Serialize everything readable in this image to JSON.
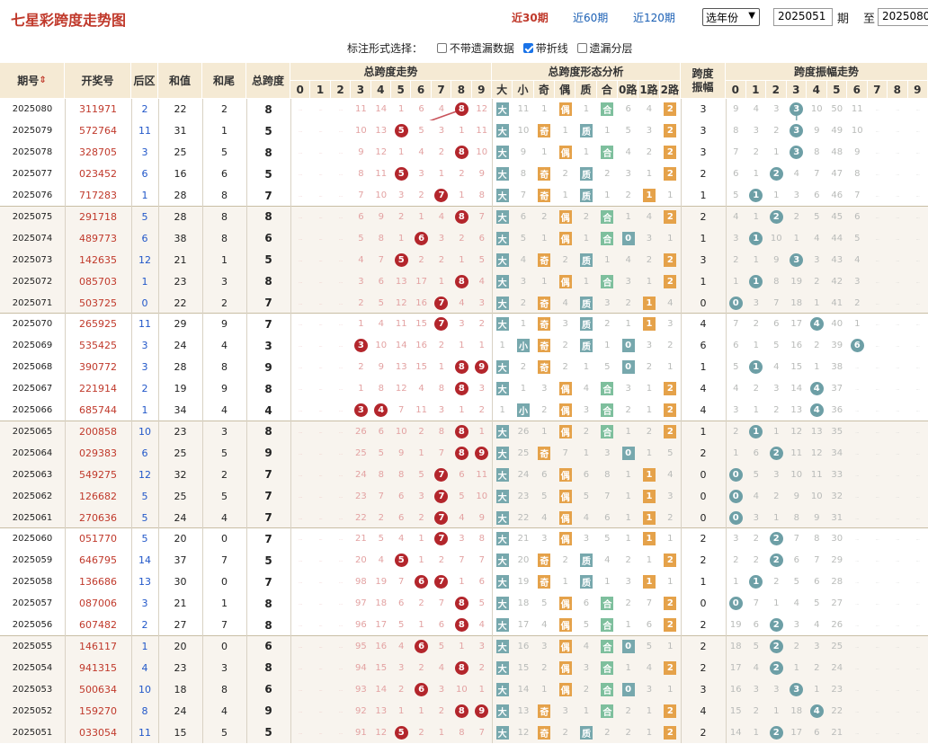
{
  "header": {
    "title": "七星彩跨度走势图",
    "links": [
      {
        "label": "近30期",
        "active": true
      },
      {
        "label": "近60期",
        "active": false
      },
      {
        "label": "近120期",
        "active": false
      }
    ],
    "year_select": "选年份",
    "from_value": "2025051",
    "period_label": "期",
    "to_label": "至",
    "to_value": "2025080"
  },
  "options": {
    "label": "标注形式选择：",
    "items": [
      {
        "label": "不带遗漏数据",
        "checked": false
      },
      {
        "label": "带折线",
        "checked": true
      },
      {
        "label": "遗漏分层",
        "checked": false
      }
    ]
  },
  "table_headers": {
    "issue": "期号",
    "draw": "开奖号",
    "back": "后区",
    "sum": "和值",
    "tail": "和尾",
    "span": "总跨度",
    "trend": "总跨度走势",
    "shape": "总跨度形态分析",
    "amp": "跨度振幅",
    "amp_trend": "跨度振幅走势",
    "digits": [
      "0",
      "1",
      "2",
      "3",
      "4",
      "5",
      "6",
      "7",
      "8",
      "9"
    ],
    "shape_cols": [
      "大",
      "小",
      "奇",
      "偶",
      "质",
      "合",
      "0路",
      "1路",
      "2路"
    ]
  },
  "colors": {
    "accent": "#c0392b",
    "link": "#1a5fb4",
    "ball_red": "#b3262c",
    "ball_teal": "#6d9fa6",
    "header_bg": "#f5ead4",
    "big": "#77a8ad",
    "odd": "#e5a24a"
  },
  "rows": [
    {
      "issue": "2025080",
      "draw": "311971",
      "back": "2",
      "sum": "22",
      "tail": "2",
      "span": "8",
      "trend": [
        "_",
        "_",
        "_",
        "11",
        "14",
        "1",
        "6",
        "4",
        "*",
        "12"
      ],
      "shape": [
        "*",
        "11",
        "1",
        "*",
        "1",
        "*",
        "6",
        "4",
        "*"
      ],
      "amp": "3",
      "amp_trend": [
        "9",
        "4",
        "3",
        "*",
        "10",
        "50",
        "11",
        "_",
        "_",
        "_"
      ]
    },
    {
      "issue": "2025079",
      "draw": "572764",
      "back": "11",
      "sum": "31",
      "tail": "1",
      "span": "5",
      "trend": [
        "_",
        "_",
        "_",
        "10",
        "13",
        "*",
        "5",
        "3",
        "1",
        "11"
      ],
      "shape": [
        "*",
        "10",
        "*",
        "1",
        "*",
        "1",
        "5",
        "3",
        "*"
      ],
      "amp": "3",
      "amp_trend": [
        "8",
        "3",
        "2",
        "*",
        "9",
        "49",
        "10",
        "_",
        "_",
        "_"
      ]
    },
    {
      "issue": "2025078",
      "draw": "328705",
      "back": "3",
      "sum": "25",
      "tail": "5",
      "span": "8",
      "trend": [
        "_",
        "_",
        "_",
        "9",
        "12",
        "1",
        "4",
        "2",
        "*",
        "10"
      ],
      "shape": [
        "*",
        "9",
        "1",
        "*",
        "1",
        "*",
        "4",
        "2",
        "*"
      ],
      "amp": "3",
      "amp_trend": [
        "7",
        "2",
        "1",
        "*",
        "8",
        "48",
        "9",
        "_",
        "_",
        "_"
      ]
    },
    {
      "issue": "2025077",
      "draw": "023452",
      "back": "6",
      "sum": "16",
      "tail": "6",
      "span": "5",
      "trend": [
        "_",
        "_",
        "_",
        "8",
        "11",
        "*",
        "3",
        "1",
        "2",
        "9"
      ],
      "shape": [
        "*",
        "8",
        "*",
        "2",
        "*",
        "2",
        "3",
        "1",
        "*"
      ],
      "amp": "2",
      "amp_trend": [
        "6",
        "1",
        "*",
        "4",
        "7",
        "47",
        "8",
        "_",
        "_",
        "_"
      ]
    },
    {
      "issue": "2025076",
      "draw": "717283",
      "back": "1",
      "sum": "28",
      "tail": "8",
      "span": "7",
      "trend": [
        "_",
        "_",
        "_",
        "7",
        "10",
        "3",
        "2",
        "*",
        "1",
        "8"
      ],
      "shape": [
        "*",
        "7",
        "*",
        "1",
        "*",
        "1",
        "2",
        "*",
        "1"
      ],
      "amp": "1",
      "amp_trend": [
        "5",
        "*",
        "1",
        "3",
        "6",
        "46",
        "7",
        "_",
        "_",
        "_"
      ]
    },
    {
      "issue": "2025075",
      "draw": "291718",
      "back": "5",
      "sum": "28",
      "tail": "8",
      "span": "8",
      "trend": [
        "_",
        "_",
        "_",
        "6",
        "9",
        "2",
        "1",
        "4",
        "*",
        "7"
      ],
      "shape": [
        "*",
        "6",
        "2",
        "*",
        "2",
        "*",
        "1",
        "4",
        "*"
      ],
      "amp": "2",
      "amp_trend": [
        "4",
        "1",
        "*",
        "2",
        "5",
        "45",
        "6",
        "_",
        "_",
        "_"
      ]
    },
    {
      "issue": "2025074",
      "draw": "489773",
      "back": "6",
      "sum": "38",
      "tail": "8",
      "span": "6",
      "trend": [
        "_",
        "_",
        "_",
        "5",
        "8",
        "1",
        "*",
        "3",
        "2",
        "6"
      ],
      "shape": [
        "*",
        "5",
        "1",
        "*",
        "1",
        "*",
        "*",
        "3",
        "1"
      ],
      "amp": "1",
      "amp_trend": [
        "3",
        "*",
        "10",
        "1",
        "4",
        "44",
        "5",
        "_",
        "_",
        "_"
      ]
    },
    {
      "issue": "2025073",
      "draw": "142635",
      "back": "12",
      "sum": "21",
      "tail": "1",
      "span": "5",
      "trend": [
        "_",
        "_",
        "_",
        "4",
        "7",
        "*",
        "2",
        "2",
        "1",
        "5"
      ],
      "shape": [
        "*",
        "4",
        "*",
        "2",
        "*",
        "1",
        "4",
        "2",
        "*"
      ],
      "amp": "3",
      "amp_trend": [
        "2",
        "1",
        "9",
        "*",
        "3",
        "43",
        "4",
        "_",
        "_",
        "_"
      ]
    },
    {
      "issue": "2025072",
      "draw": "085703",
      "back": "1",
      "sum": "23",
      "tail": "3",
      "span": "8",
      "trend": [
        "_",
        "_",
        "_",
        "3",
        "6",
        "13",
        "17",
        "1",
        "*",
        "4"
      ],
      "shape": [
        "*",
        "3",
        "1",
        "*",
        "1",
        "*",
        "3",
        "1",
        "*"
      ],
      "amp": "1",
      "amp_trend": [
        "1",
        "*",
        "8",
        "19",
        "2",
        "42",
        "3",
        "_",
        "_",
        "_"
      ]
    },
    {
      "issue": "2025071",
      "draw": "503725",
      "back": "0",
      "sum": "22",
      "tail": "2",
      "span": "7",
      "trend": [
        "_",
        "_",
        "_",
        "2",
        "5",
        "12",
        "16",
        "*",
        "4",
        "3"
      ],
      "shape": [
        "*",
        "2",
        "*",
        "4",
        "*",
        "3",
        "2",
        "*",
        "4"
      ],
      "amp": "0",
      "amp_trend": [
        "*",
        "3",
        "7",
        "18",
        "1",
        "41",
        "2",
        "_",
        "_",
        "_"
      ]
    },
    {
      "issue": "2025070",
      "draw": "265925",
      "back": "11",
      "sum": "29",
      "tail": "9",
      "span": "7",
      "trend": [
        "_",
        "_",
        "_",
        "1",
        "4",
        "11",
        "15",
        "*",
        "3",
        "2"
      ],
      "shape": [
        "*",
        "1",
        "*",
        "3",
        "*",
        "2",
        "1",
        "*",
        "3"
      ],
      "amp": "4",
      "amp_trend": [
        "7",
        "2",
        "6",
        "17",
        "*",
        "40",
        "1",
        "_",
        "_",
        "_"
      ]
    },
    {
      "issue": "2025069",
      "draw": "535425",
      "back": "3",
      "sum": "24",
      "tail": "4",
      "span": "3",
      "trend": [
        "_",
        "_",
        "_",
        "*",
        "10",
        "14",
        "16",
        "2",
        "1",
        "1"
      ],
      "shape": [
        "1",
        "*",
        "*",
        "2",
        "*",
        "1",
        "*",
        "3",
        "2"
      ],
      "amp": "6",
      "amp_trend": [
        "6",
        "1",
        "5",
        "16",
        "2",
        "39",
        "*",
        "_",
        "_",
        "_"
      ]
    },
    {
      "issue": "2025068",
      "draw": "390772",
      "back": "3",
      "sum": "28",
      "tail": "8",
      "span": "9",
      "trend": [
        "_",
        "_",
        "_",
        "2",
        "9",
        "13",
        "15",
        "1",
        "*",
        "*"
      ],
      "shape": [
        "*",
        "2",
        "*",
        "2",
        "1",
        "5",
        "*",
        "2",
        "1"
      ],
      "amp": "1",
      "amp_trend": [
        "5",
        "*",
        "4",
        "15",
        "1",
        "38",
        "_",
        "_",
        "_",
        "_"
      ]
    },
    {
      "issue": "2025067",
      "draw": "221914",
      "back": "2",
      "sum": "19",
      "tail": "9",
      "span": "8",
      "trend": [
        "_",
        "_",
        "_",
        "1",
        "8",
        "12",
        "4",
        "8",
        "*",
        "3"
      ],
      "shape": [
        "*",
        "1",
        "3",
        "*",
        "4",
        "*",
        "3",
        "1",
        "*"
      ],
      "amp": "4",
      "amp_trend": [
        "4",
        "2",
        "3",
        "14",
        "*",
        "37",
        "_",
        "_",
        "_",
        "_"
      ]
    },
    {
      "issue": "2025066",
      "draw": "685744",
      "back": "1",
      "sum": "34",
      "tail": "4",
      "span": "4",
      "trend": [
        "_",
        "_",
        "_",
        "*",
        "*",
        "7",
        "11",
        "3",
        "1",
        "2"
      ],
      "shape": [
        "1",
        "*",
        "2",
        "*",
        "3",
        "*",
        "2",
        "1",
        "*"
      ],
      "amp": "4",
      "amp_trend": [
        "3",
        "1",
        "2",
        "13",
        "*",
        "36",
        "_",
        "_",
        "_",
        "_"
      ]
    },
    {
      "issue": "2025065",
      "draw": "200858",
      "back": "10",
      "sum": "23",
      "tail": "3",
      "span": "8",
      "trend": [
        "_",
        "_",
        "_",
        "26",
        "6",
        "10",
        "2",
        "8",
        "*",
        "1"
      ],
      "shape": [
        "*",
        "26",
        "1",
        "*",
        "2",
        "*",
        "1",
        "2",
        "*"
      ],
      "amp": "1",
      "amp_trend": [
        "2",
        "*",
        "1",
        "12",
        "13",
        "35",
        "_",
        "_",
        "_",
        "_"
      ]
    },
    {
      "issue": "2025064",
      "draw": "029383",
      "back": "6",
      "sum": "25",
      "tail": "5",
      "span": "9",
      "trend": [
        "_",
        "_",
        "_",
        "25",
        "5",
        "9",
        "1",
        "7",
        "*",
        "*"
      ],
      "shape": [
        "*",
        "25",
        "*",
        "7",
        "1",
        "3",
        "*",
        "1",
        "5"
      ],
      "amp": "2",
      "amp_trend": [
        "1",
        "6",
        "*",
        "11",
        "12",
        "34",
        "_",
        "_",
        "_",
        "_"
      ]
    },
    {
      "issue": "2025063",
      "draw": "549275",
      "back": "12",
      "sum": "32",
      "tail": "2",
      "span": "7",
      "trend": [
        "_",
        "_",
        "_",
        "24",
        "8",
        "8",
        "5",
        "*",
        "6",
        "11"
      ],
      "shape": [
        "*",
        "24",
        "6",
        "*",
        "6",
        "8",
        "1",
        "*",
        "4"
      ],
      "amp": "0",
      "amp_trend": [
        "*",
        "5",
        "3",
        "10",
        "11",
        "33",
        "_",
        "_",
        "_",
        "_"
      ]
    },
    {
      "issue": "2025062",
      "draw": "126682",
      "back": "5",
      "sum": "25",
      "tail": "5",
      "span": "7",
      "trend": [
        "_",
        "_",
        "_",
        "23",
        "7",
        "6",
        "3",
        "*",
        "5",
        "10"
      ],
      "shape": [
        "*",
        "23",
        "5",
        "*",
        "5",
        "7",
        "1",
        "*",
        "3"
      ],
      "amp": "0",
      "amp_trend": [
        "*",
        "4",
        "2",
        "9",
        "10",
        "32",
        "_",
        "_",
        "_",
        "_"
      ]
    },
    {
      "issue": "2025061",
      "draw": "270636",
      "back": "5",
      "sum": "24",
      "tail": "4",
      "span": "7",
      "trend": [
        "_",
        "_",
        "_",
        "22",
        "2",
        "6",
        "2",
        "*",
        "4",
        "9"
      ],
      "shape": [
        "*",
        "22",
        "4",
        "*",
        "4",
        "6",
        "1",
        "*",
        "2"
      ],
      "amp": "0",
      "amp_trend": [
        "*",
        "3",
        "1",
        "8",
        "9",
        "31",
        "_",
        "_",
        "_",
        "_"
      ]
    },
    {
      "issue": "2025060",
      "draw": "051770",
      "back": "5",
      "sum": "20",
      "tail": "0",
      "span": "7",
      "trend": [
        "_",
        "_",
        "_",
        "21",
        "5",
        "4",
        "1",
        "*",
        "3",
        "8"
      ],
      "shape": [
        "*",
        "21",
        "3",
        "*",
        "3",
        "5",
        "1",
        "*",
        "1"
      ],
      "amp": "2",
      "amp_trend": [
        "3",
        "2",
        "*",
        "7",
        "8",
        "30",
        "_",
        "_",
        "_",
        "_"
      ]
    },
    {
      "issue": "2025059",
      "draw": "646795",
      "back": "14",
      "sum": "37",
      "tail": "7",
      "span": "5",
      "trend": [
        "_",
        "_",
        "_",
        "20",
        "4",
        "*",
        "1",
        "2",
        "7",
        "7"
      ],
      "shape": [
        "*",
        "20",
        "*",
        "2",
        "*",
        "4",
        "2",
        "1",
        "*"
      ],
      "amp": "2",
      "amp_trend": [
        "2",
        "2",
        "*",
        "6",
        "7",
        "29",
        "_",
        "_",
        "_",
        "_"
      ]
    },
    {
      "issue": "2025058",
      "draw": "136686",
      "back": "13",
      "sum": "30",
      "tail": "0",
      "span": "7",
      "trend": [
        "_",
        "_",
        "_",
        "98",
        "19",
        "7",
        "*",
        "*",
        "1",
        "6"
      ],
      "shape": [
        "*",
        "19",
        "*",
        "1",
        "*",
        "1",
        "3",
        "*",
        "1"
      ],
      "amp": "1",
      "amp_trend": [
        "1",
        "*",
        "2",
        "5",
        "6",
        "28",
        "_",
        "_",
        "_",
        "_"
      ]
    },
    {
      "issue": "2025057",
      "draw": "087006",
      "back": "3",
      "sum": "21",
      "tail": "1",
      "span": "8",
      "trend": [
        "_",
        "_",
        "_",
        "97",
        "18",
        "6",
        "2",
        "7",
        "*",
        "5"
      ],
      "shape": [
        "*",
        "18",
        "5",
        "*",
        "6",
        "*",
        "2",
        "7",
        "*"
      ],
      "amp": "0",
      "amp_trend": [
        "*",
        "7",
        "1",
        "4",
        "5",
        "27",
        "_",
        "_",
        "_",
        "_"
      ]
    },
    {
      "issue": "2025056",
      "draw": "607482",
      "back": "2",
      "sum": "27",
      "tail": "7",
      "span": "8",
      "trend": [
        "_",
        "_",
        "_",
        "96",
        "17",
        "5",
        "1",
        "6",
        "*",
        "4"
      ],
      "shape": [
        "*",
        "17",
        "4",
        "*",
        "5",
        "*",
        "1",
        "6",
        "*"
      ],
      "amp": "2",
      "amp_trend": [
        "19",
        "6",
        "*",
        "3",
        "4",
        "26",
        "_",
        "_",
        "_",
        "_"
      ]
    },
    {
      "issue": "2025055",
      "draw": "146117",
      "back": "1",
      "sum": "20",
      "tail": "0",
      "span": "6",
      "trend": [
        "_",
        "_",
        "_",
        "95",
        "16",
        "4",
        "*",
        "5",
        "1",
        "3"
      ],
      "shape": [
        "*",
        "16",
        "3",
        "*",
        "4",
        "*",
        "*",
        "5",
        "1"
      ],
      "amp": "2",
      "amp_trend": [
        "18",
        "5",
        "*",
        "2",
        "3",
        "25",
        "_",
        "_",
        "_",
        "_"
      ]
    },
    {
      "issue": "2025054",
      "draw": "941315",
      "back": "4",
      "sum": "23",
      "tail": "3",
      "span": "8",
      "trend": [
        "_",
        "_",
        "_",
        "94",
        "15",
        "3",
        "2",
        "4",
        "*",
        "2"
      ],
      "shape": [
        "*",
        "15",
        "2",
        "*",
        "3",
        "*",
        "1",
        "4",
        "*"
      ],
      "amp": "2",
      "amp_trend": [
        "17",
        "4",
        "*",
        "1",
        "2",
        "24",
        "_",
        "_",
        "_",
        "_"
      ]
    },
    {
      "issue": "2025053",
      "draw": "500634",
      "back": "10",
      "sum": "18",
      "tail": "8",
      "span": "6",
      "trend": [
        "_",
        "_",
        "_",
        "93",
        "14",
        "2",
        "*",
        "3",
        "10",
        "1"
      ],
      "shape": [
        "*",
        "14",
        "1",
        "*",
        "2",
        "*",
        "*",
        "3",
        "1"
      ],
      "amp": "3",
      "amp_trend": [
        "16",
        "3",
        "3",
        "*",
        "1",
        "23",
        "_",
        "_",
        "_",
        "_"
      ]
    },
    {
      "issue": "2025052",
      "draw": "159270",
      "back": "8",
      "sum": "24",
      "tail": "4",
      "span": "9",
      "trend": [
        "_",
        "_",
        "_",
        "92",
        "13",
        "1",
        "1",
        "2",
        "*",
        "*"
      ],
      "shape": [
        "*",
        "13",
        "*",
        "3",
        "1",
        "*",
        "2",
        "1",
        "*"
      ],
      "amp": "4",
      "amp_trend": [
        "15",
        "2",
        "1",
        "18",
        "*",
        "22",
        "_",
        "_",
        "_",
        "_"
      ]
    },
    {
      "issue": "2025051",
      "draw": "033054",
      "back": "11",
      "sum": "15",
      "tail": "5",
      "span": "5",
      "trend": [
        "_",
        "_",
        "_",
        "91",
        "12",
        "*",
        "2",
        "1",
        "8",
        "7"
      ],
      "shape": [
        "*",
        "12",
        "*",
        "2",
        "*",
        "2",
        "2",
        "1",
        "*"
      ],
      "amp": "2",
      "amp_trend": [
        "14",
        "1",
        "*",
        "17",
        "6",
        "21",
        "_",
        "_",
        "_",
        "_"
      ]
    }
  ]
}
